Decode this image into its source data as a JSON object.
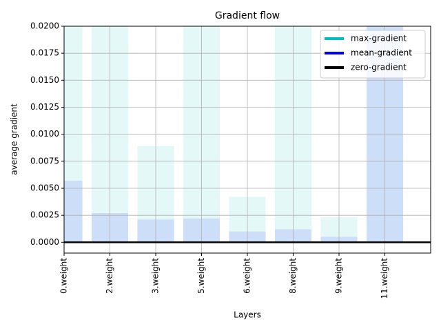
{
  "chart_data": {
    "type": "bar",
    "title": "Gradient flow",
    "x_label": "Layers",
    "y_label": "average gradient",
    "categories": [
      "0.weight",
      "2.weight",
      "3.weight",
      "5.weight",
      "6.weight",
      "8.weight",
      "9.weight",
      "11.weight"
    ],
    "series": [
      {
        "name": "max-gradient",
        "color": "#00bfbf",
        "values": [
          0.02,
          0.02,
          0.0089,
          0.02,
          0.0042,
          0.02,
          0.0023,
          0.02
        ]
      },
      {
        "name": "mean-gradient",
        "color": "#0000ff",
        "values": [
          0.0057,
          0.0027,
          0.0021,
          0.0022,
          0.001,
          0.0012,
          0.0005,
          0.02
        ]
      }
    ],
    "hline": {
      "name": "zero-gradient",
      "color": "#000000",
      "value": 0
    },
    "bar_alpha": 0.1,
    "xlim": [
      0,
      8
    ],
    "ylim": [
      -0.001,
      0.02
    ],
    "yticks": [
      {
        "value": 0,
        "label": "0.0000"
      },
      {
        "value": 0.0025,
        "label": "0.0025"
      },
      {
        "value": 0.005,
        "label": "0.0050"
      },
      {
        "value": 0.0075,
        "label": "0.0075"
      },
      {
        "value": 0.01,
        "label": "0.0100"
      },
      {
        "value": 0.0125,
        "label": "0.0125"
      },
      {
        "value": 0.015,
        "label": "0.0150"
      },
      {
        "value": 0.0175,
        "label": "0.0175"
      },
      {
        "value": 0.02,
        "label": "0.0200"
      }
    ],
    "grid": true,
    "legend": "upper right"
  }
}
